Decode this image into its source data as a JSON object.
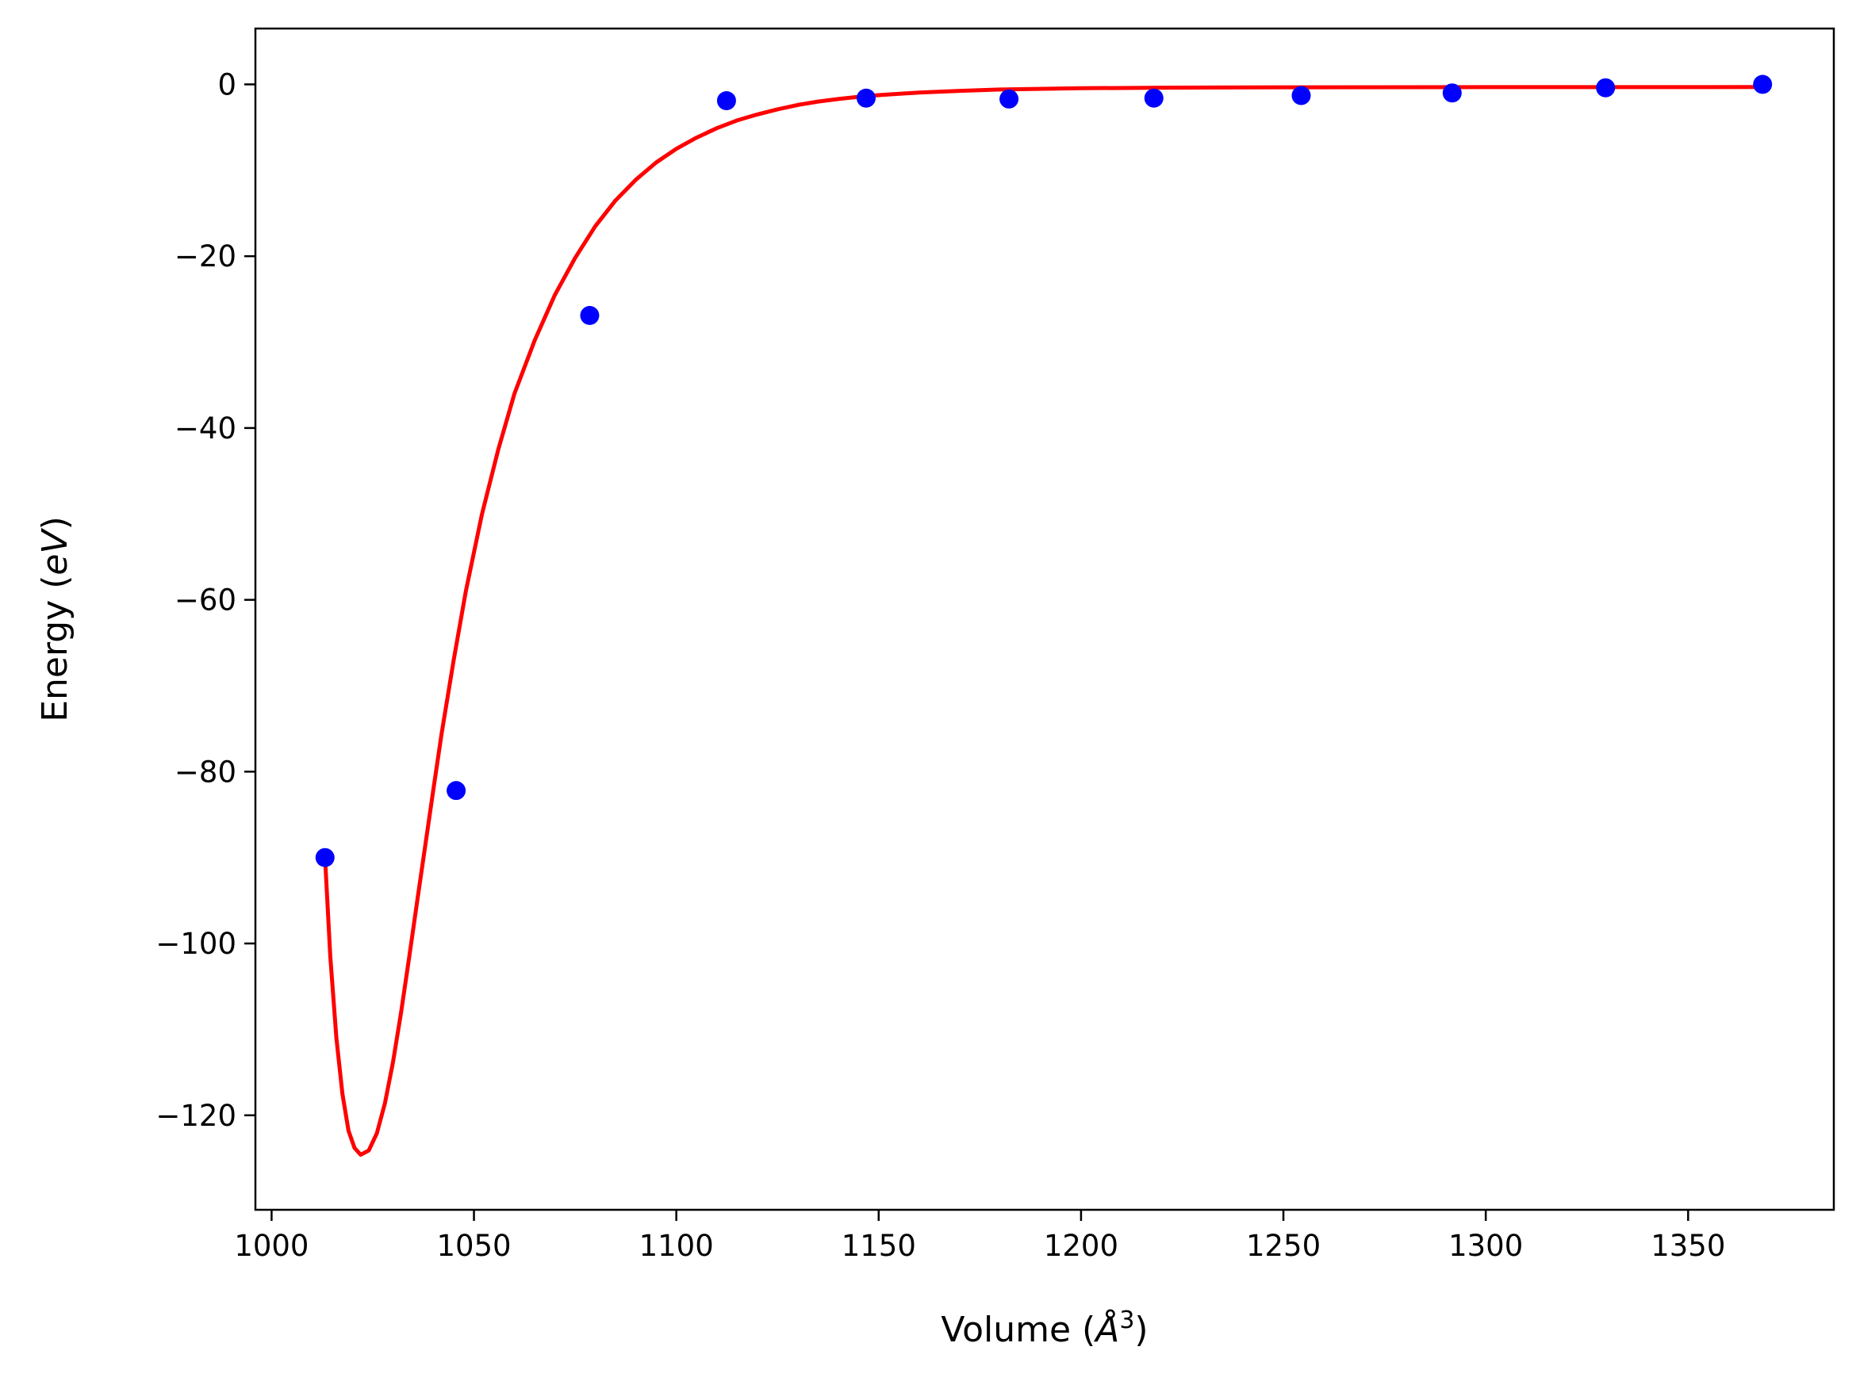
{
  "chart_data": {
    "type": "scatter",
    "title": "",
    "xlabel": {
      "prefix": "Volume (",
      "symbol": "Å",
      "superscript": "3",
      "suffix": ")"
    },
    "ylabel": {
      "prefix": "Energy (",
      "symbol": "eV",
      "suffix": ")"
    },
    "xlim": [
      996,
      1386
    ],
    "ylim": [
      -131,
      6.5
    ],
    "x_ticks": [
      1000,
      1050,
      1100,
      1150,
      1200,
      1250,
      1300,
      1350
    ],
    "x_tick_labels": [
      "1000",
      "1050",
      "1100",
      "1150",
      "1200",
      "1250",
      "1300",
      "1350"
    ],
    "y_ticks": [
      0,
      -20,
      -40,
      -60,
      -80,
      -100,
      -120
    ],
    "y_tick_labels": [
      "0",
      "−20",
      "−40",
      "−60",
      "−80",
      "−100",
      "−120"
    ],
    "grid": false,
    "series": [
      {
        "kind": "scatter",
        "color": "#0000ff",
        "x": [
          1013.2,
          1045.6,
          1078.6,
          1112.4,
          1146.9,
          1182.2,
          1218.0,
          1254.4,
          1291.7,
          1329.6,
          1368.4
        ],
        "y": [
          -90.0,
          -82.2,
          -26.9,
          -1.9,
          -1.6,
          -1.7,
          -1.6,
          -1.3,
          -1.0,
          -0.4,
          0.0
        ]
      },
      {
        "kind": "line",
        "color": "#ff0000",
        "x": [
          1013.2,
          1014.5,
          1016,
          1017.5,
          1019,
          1020.5,
          1022,
          1024,
          1026,
          1028,
          1030,
          1032,
          1034,
          1036,
          1038,
          1040,
          1042,
          1045,
          1048,
          1052,
          1056,
          1060,
          1065,
          1070,
          1075,
          1080,
          1085,
          1090,
          1095,
          1100,
          1105,
          1110,
          1115,
          1120,
          1125,
          1130,
          1135,
          1140,
          1145,
          1150,
          1160,
          1170,
          1180,
          1200,
          1220,
          1250,
          1300,
          1368.4
        ],
        "y": [
          -90.0,
          -101.5,
          -111,
          -117.5,
          -121.8,
          -123.8,
          -124.6,
          -124.1,
          -122.1,
          -118.6,
          -113.8,
          -108.0,
          -101.6,
          -95.0,
          -88.5,
          -82.0,
          -75.6,
          -67.0,
          -59.0,
          -50.0,
          -42.5,
          -36.0,
          -29.8,
          -24.5,
          -20.2,
          -16.5,
          -13.5,
          -11.1,
          -9.1,
          -7.5,
          -6.2,
          -5.1,
          -4.2,
          -3.5,
          -2.9,
          -2.4,
          -2.0,
          -1.7,
          -1.45,
          -1.25,
          -0.95,
          -0.75,
          -0.6,
          -0.45,
          -0.38,
          -0.34,
          -0.32,
          -0.31
        ]
      }
    ]
  }
}
